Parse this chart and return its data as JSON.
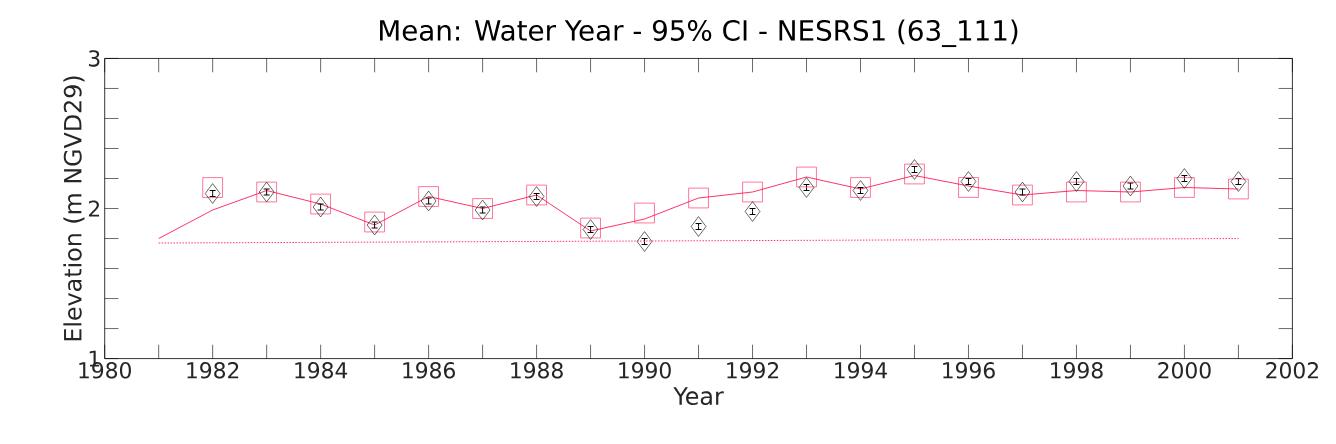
{
  "chart_data": {
    "type": "scatter",
    "title": "Mean: Water Year - 95% CI - NESRS1 (63_111)",
    "xlabel": "Year",
    "ylabel": "Elevation (m NGVD29)",
    "xlim": [
      1980,
      2002
    ],
    "ylim": [
      1,
      3
    ],
    "xticks": [
      1980,
      {
        "value": 1981,
        "label": null
      },
      1982,
      {
        "value": 1983,
        "label": null
      },
      1984,
      {
        "value": 1985,
        "label": null
      },
      1986,
      {
        "value": 1987,
        "label": null
      },
      1988,
      {
        "value": 1989,
        "label": null
      },
      1990,
      {
        "value": 1991,
        "label": null
      },
      1992,
      {
        "value": 1993,
        "label": null
      },
      1994,
      {
        "value": 1995,
        "label": null
      },
      1996,
      {
        "value": 1997,
        "label": null
      },
      1998,
      {
        "value": 1999,
        "label": null
      },
      2000,
      {
        "value": 2001,
        "label": null
      },
      2002
    ],
    "yticks": [
      1,
      {
        "value": 1.2,
        "label": null
      },
      {
        "value": 1.4,
        "label": null
      },
      {
        "value": 1.6,
        "label": null
      },
      {
        "value": 1.8,
        "label": null
      },
      2,
      {
        "value": 2.2,
        "label": null
      },
      {
        "value": 2.4,
        "label": null
      },
      {
        "value": 2.6,
        "label": null
      },
      {
        "value": 2.8,
        "label": null
      },
      3
    ],
    "grid": false,
    "x": [
      1981,
      1982,
      1983,
      1984,
      1985,
      1986,
      1987,
      1988,
      1989,
      1990,
      1991,
      1992,
      1993,
      1994,
      1995,
      1996,
      1997,
      1998,
      1999,
      2000,
      2001
    ],
    "series": [
      {
        "type": "line",
        "color": "#ff1a55",
        "marker": "none",
        "line_style": "solid",
        "values": [
          1.8,
          1.99,
          2.12,
          2.03,
          1.89,
          2.08,
          2.0,
          2.09,
          1.85,
          1.93,
          2.07,
          2.11,
          2.21,
          2.13,
          2.22,
          2.15,
          2.09,
          2.12,
          2.11,
          2.14,
          2.13
        ]
      },
      {
        "color": "#ff1a55",
        "marker": "square",
        "x": [
          1982,
          1983,
          1984,
          1985,
          1986,
          1987,
          1988,
          1989,
          1990,
          1991,
          1992,
          1993,
          1994,
          1995,
          1996,
          1997,
          1998,
          1999,
          2000,
          2001
        ],
        "values": [
          2.14,
          2.11,
          2.03,
          1.91,
          2.08,
          2.0,
          2.09,
          1.87,
          1.97,
          2.07,
          2.11,
          2.21,
          2.14,
          2.23,
          2.14,
          2.09,
          2.11,
          2.11,
          2.14,
          2.13
        ]
      },
      {
        "color": "#000000",
        "marker": "diamond",
        "x": [
          1982,
          1983,
          1984,
          1985,
          1986,
          1987,
          1988,
          1989,
          1990,
          1991,
          1992,
          1993,
          1994,
          1995,
          1996,
          1997,
          1998,
          1999,
          2000,
          2001
        ],
        "values": [
          2.1,
          2.11,
          2.01,
          1.89,
          2.05,
          1.99,
          2.08,
          1.86,
          1.78,
          1.88,
          1.98,
          2.14,
          2.12,
          2.26,
          2.18,
          2.11,
          2.18,
          2.15,
          2.2,
          2.18
        ],
        "errors": [
          0.02,
          0.02,
          0.02,
          0.02,
          0.02,
          0.02,
          0.02,
          0.02,
          0.02,
          0.02,
          0.02,
          0.02,
          0.02,
          0.02,
          0.02,
          0.02,
          0.02,
          0.02,
          0.02,
          0.02
        ]
      },
      {
        "type": "line",
        "color": "#ff1a55",
        "marker": "none",
        "line_style": "dotted",
        "x": [
          1981,
          2001
        ],
        "values": [
          1.77,
          1.8
        ]
      }
    ]
  }
}
